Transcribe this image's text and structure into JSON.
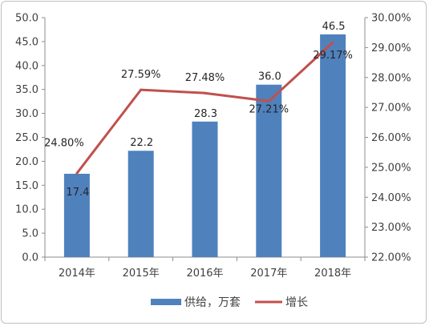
{
  "chart_data": {
    "type": "bar",
    "categories": [
      "2014年",
      "2015年",
      "2016年",
      "2017年",
      "2018年"
    ],
    "series": [
      {
        "name": "供给，万套",
        "type": "bar",
        "axis": "left",
        "values": [
          17.4,
          22.2,
          28.3,
          36.0,
          46.5
        ],
        "labels": [
          "17.4",
          "22.2",
          "28.3",
          "36.0",
          "46.5"
        ],
        "color": "#4f81bd"
      },
      {
        "name": "增长",
        "type": "line",
        "axis": "right",
        "values": [
          24.8,
          27.59,
          27.48,
          27.21,
          29.17
        ],
        "labels": [
          "24.80%",
          "27.59%",
          "27.48%",
          "27.21%",
          "29.17%"
        ],
        "color": "#c0504d"
      }
    ],
    "y_left": {
      "lim": [
        0,
        50
      ],
      "ticks": [
        "0.0",
        "5.0",
        "10.0",
        "15.0",
        "20.0",
        "25.0",
        "30.0",
        "35.0",
        "40.0",
        "45.0",
        "50.0"
      ]
    },
    "y_right": {
      "lim": [
        22,
        30
      ],
      "ticks": [
        "22.00%",
        "23.00%",
        "24.00%",
        "25.00%",
        "26.00%",
        "27.00%",
        "28.00%",
        "29.00%",
        "30.00%"
      ]
    },
    "grid": false,
    "legend": "bottom"
  }
}
